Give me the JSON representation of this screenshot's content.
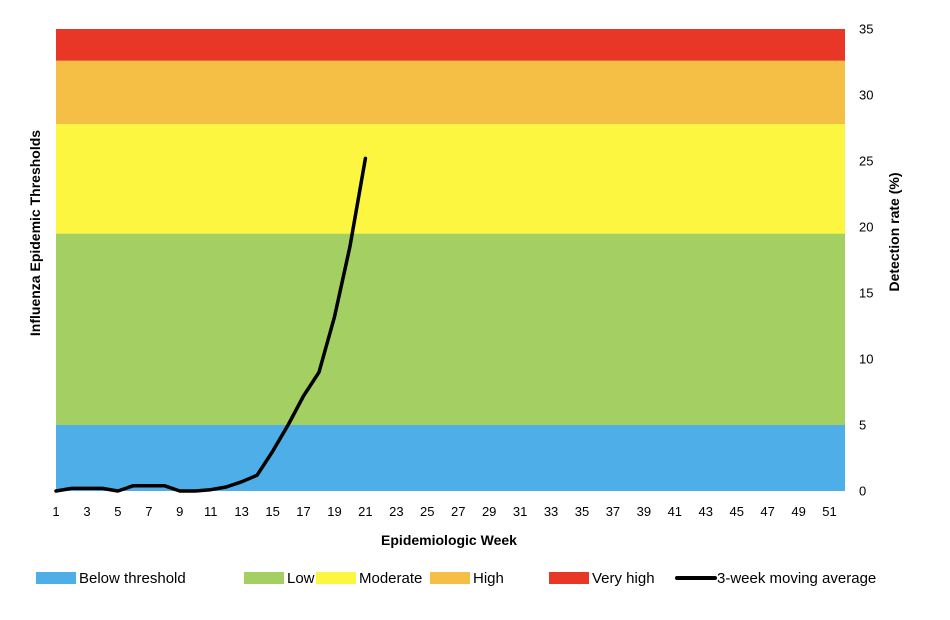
{
  "chart_data": {
    "type": "line",
    "xlabel": "Epidemiologic Week",
    "ylabel_left": "Influenza Epidemic Thresholds",
    "ylabel_right": "Detection rate (%)",
    "xlim": [
      1,
      52
    ],
    "ylim": [
      0,
      35
    ],
    "x_ticks": [
      1,
      3,
      5,
      7,
      9,
      11,
      13,
      15,
      17,
      19,
      21,
      23,
      25,
      27,
      29,
      31,
      33,
      35,
      37,
      39,
      41,
      43,
      45,
      47,
      49,
      51
    ],
    "y_ticks": [
      0,
      5,
      10,
      15,
      20,
      25,
      30,
      35
    ],
    "bands": [
      {
        "name": "Below threshold",
        "from": 0,
        "to": 5,
        "color": "#4eaee8"
      },
      {
        "name": "Low",
        "from": 5,
        "to": 19.5,
        "color": "#a3cf63"
      },
      {
        "name": "Moderate",
        "from": 19.5,
        "to": 27.8,
        "color": "#fdf640"
      },
      {
        "name": "High",
        "from": 27.8,
        "to": 32.6,
        "color": "#f4bf44"
      },
      {
        "name": "Very high",
        "from": 32.6,
        "to": 35,
        "color": "#e93727"
      }
    ],
    "series": [
      {
        "name": "3-week moving average",
        "color": "#000000",
        "x": [
          1,
          2,
          3,
          4,
          5,
          6,
          7,
          8,
          9,
          10,
          11,
          12,
          13,
          14,
          15,
          16,
          17,
          18,
          19,
          20,
          21
        ],
        "y": [
          0.0,
          0.2,
          0.2,
          0.2,
          0.0,
          0.4,
          0.4,
          0.4,
          0.0,
          0.0,
          0.1,
          0.3,
          0.7,
          1.2,
          3.0,
          5.0,
          7.2,
          9.0,
          13.2,
          18.5,
          25.2
        ]
      }
    ],
    "legend_position": "bottom",
    "grid": false
  }
}
